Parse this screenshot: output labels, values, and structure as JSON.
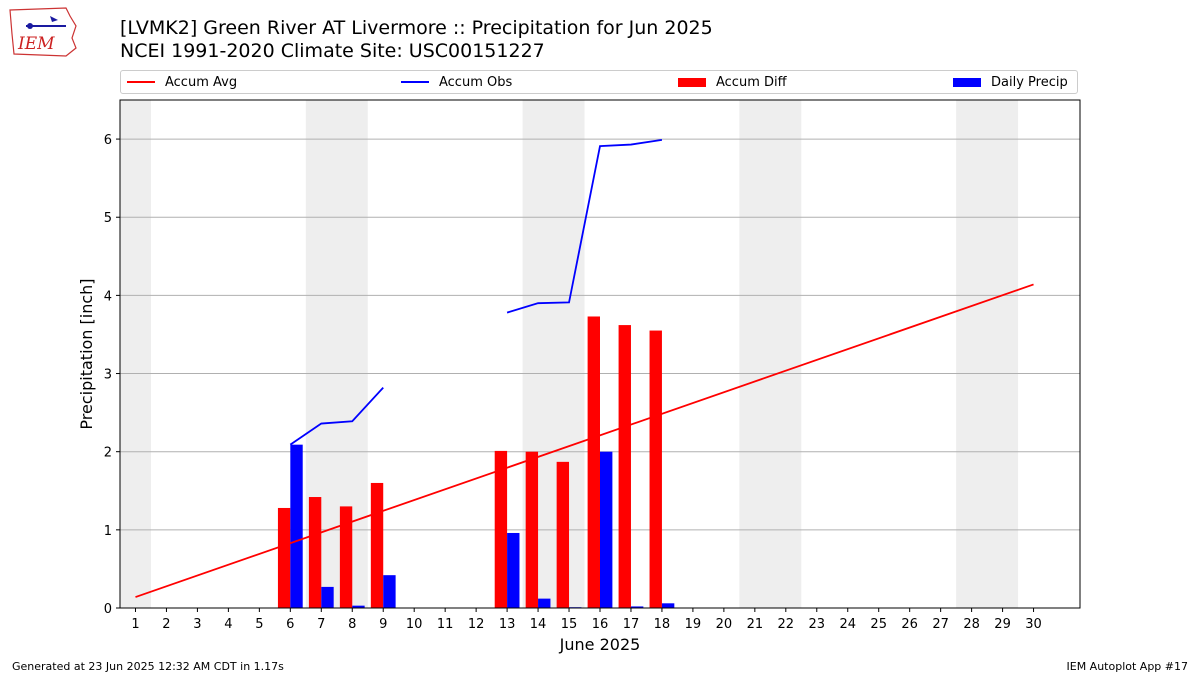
{
  "header": {
    "title_line1": "[LVMK2] Green River  AT Livermore :: Precipitation for Jun 2025",
    "title_line2": "NCEI 1991-2020 Climate Site: USC00151227",
    "logo_text": "IEM"
  },
  "legend": {
    "items": [
      {
        "label": "Accum Avg",
        "kind": "line",
        "color": "#ff0000"
      },
      {
        "label": "Accum Obs",
        "kind": "line",
        "color": "#0000ff"
      },
      {
        "label": "Accum Diff",
        "kind": "bar",
        "color": "#ff0000"
      },
      {
        "label": "Daily Precip",
        "kind": "bar",
        "color": "#0000ff"
      }
    ],
    "placement": "top"
  },
  "footer": {
    "left": "Generated at 23 Jun 2025 12:32 AM CDT in 1.17s",
    "right": "IEM Autoplot App #17"
  },
  "chart_data": {
    "type": "bar",
    "title": "[LVMK2] Green River  AT Livermore :: Precipitation for Jun 2025",
    "subtitle": "NCEI 1991-2020 Climate Site: USC00151227",
    "xlabel": "June 2025",
    "ylabel": "Precipitation [inch]",
    "xlim": [
      0.5,
      31.5
    ],
    "ylim": [
      0,
      6.5
    ],
    "x_ticks": [
      1,
      2,
      3,
      4,
      5,
      6,
      7,
      8,
      9,
      10,
      11,
      12,
      13,
      14,
      15,
      16,
      17,
      18,
      19,
      20,
      21,
      22,
      23,
      24,
      25,
      26,
      27,
      28,
      29,
      30
    ],
    "y_ticks": [
      0,
      1,
      2,
      3,
      4,
      5,
      6
    ],
    "grid": "horizontal",
    "weekend_shading": [
      [
        1,
        1
      ],
      [
        7,
        8
      ],
      [
        14,
        15
      ],
      [
        21,
        22
      ],
      [
        28,
        29
      ]
    ],
    "colors": {
      "avg": "#ff0000",
      "obs": "#0000ff",
      "diff": "#ff0000",
      "daily": "#0000ff",
      "shade": "#eeeeee",
      "grid": "#b0b0b0"
    },
    "series": [
      {
        "name": "Accum Avg",
        "kind": "line",
        "points": [
          [
            1,
            0.14
          ],
          [
            30,
            4.14
          ]
        ]
      },
      {
        "name": "Accum Obs",
        "kind": "line",
        "segments": [
          [
            [
              6,
              2.09
            ],
            [
              7,
              2.36
            ],
            [
              8,
              2.39
            ],
            [
              9,
              2.82
            ]
          ],
          [
            [
              13,
              3.78
            ],
            [
              14,
              3.9
            ],
            [
              15,
              3.91
            ],
            [
              16,
              5.91
            ],
            [
              17,
              5.93
            ],
            [
              18,
              5.99
            ]
          ]
        ]
      },
      {
        "name": "Accum Diff",
        "kind": "bar",
        "x": [
          6,
          7,
          8,
          9,
          13,
          14,
          15,
          16,
          17,
          18
        ],
        "values": [
          1.28,
          1.42,
          1.3,
          1.6,
          2.01,
          2.0,
          1.87,
          3.73,
          3.62,
          3.55
        ]
      },
      {
        "name": "Daily Precip",
        "kind": "bar",
        "x": [
          6,
          7,
          8,
          9,
          13,
          14,
          15,
          16,
          17,
          18
        ],
        "values": [
          2.09,
          0.27,
          0.03,
          0.42,
          0.96,
          0.12,
          0.01,
          2.0,
          0.02,
          0.06
        ]
      }
    ]
  }
}
